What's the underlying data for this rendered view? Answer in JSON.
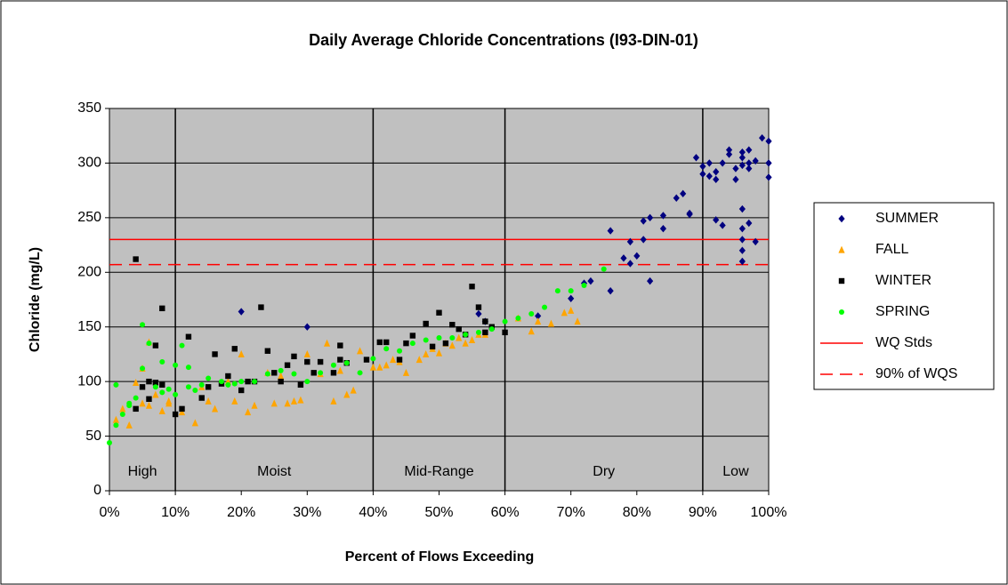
{
  "chart_data": {
    "type": "scatter",
    "title": "Daily Average Chloride Concentrations (I93-DIN-01)",
    "x_label": "Percent of Flows Exceeding",
    "y_label": "Chloride (mg/L)",
    "xlim": [
      0,
      100
    ],
    "ylim": [
      0,
      350
    ],
    "xticks": [
      {
        "value": 0,
        "label": "0%"
      },
      {
        "value": 10,
        "label": "10%"
      },
      {
        "value": 20,
        "label": "20%"
      },
      {
        "value": 30,
        "label": "30%"
      },
      {
        "value": 40,
        "label": "40%"
      },
      {
        "value": 50,
        "label": "50%"
      },
      {
        "value": 60,
        "label": "60%"
      },
      {
        "value": 70,
        "label": "70%"
      },
      {
        "value": 80,
        "label": "80%"
      },
      {
        "value": 90,
        "label": "90%"
      },
      {
        "value": 100,
        "label": "100%"
      }
    ],
    "yticks": [
      0,
      50,
      100,
      150,
      200,
      250,
      300,
      350
    ],
    "grid": true,
    "zone_bounds": [
      10,
      40,
      60,
      90
    ],
    "zones": [
      "High",
      "Moist",
      "Mid-Range",
      "Dry",
      "Low"
    ],
    "ref_lines": [
      {
        "name": "WQ Stds",
        "value": 230,
        "color": "#ff0000",
        "dashed": false
      },
      {
        "name": "90% of WQS",
        "value": 207,
        "color": "#ff0000",
        "dashed": true
      }
    ],
    "legend": "right",
    "series": [
      {
        "name": "SUMMER",
        "color": "#000080",
        "marker": "diamond",
        "x": [
          20,
          30,
          56,
          57,
          65,
          70,
          72,
          73,
          76,
          76,
          78,
          79,
          79,
          80,
          81,
          81,
          82,
          82,
          84,
          84,
          86,
          87,
          88,
          88,
          89,
          90,
          90,
          91,
          91,
          92,
          92,
          93,
          93,
          94,
          95,
          95,
          96,
          96,
          96,
          96,
          96,
          96,
          96,
          97,
          97,
          97,
          98,
          98,
          99,
          100,
          100,
          100,
          92,
          94,
          96,
          97
        ],
        "y": [
          164,
          150,
          162,
          155,
          160,
          176,
          190,
          192,
          238,
          183,
          213,
          228,
          208,
          215,
          230,
          247,
          250,
          192,
          252,
          240,
          268,
          272,
          254,
          253,
          305,
          290,
          297,
          300,
          288,
          285,
          248,
          300,
          243,
          312,
          295,
          285,
          310,
          305,
          298,
          258,
          240,
          230,
          210,
          312,
          300,
          295,
          302,
          228,
          323,
          300,
          287,
          320,
          292,
          308,
          220,
          245
        ]
      },
      {
        "name": "FALL",
        "color": "#ffa500",
        "marker": "triangle",
        "x": [
          1,
          2,
          3,
          4,
          5,
          6,
          7,
          8,
          9,
          11,
          13,
          14,
          15,
          16,
          18,
          19,
          20,
          21,
          22,
          24,
          25,
          26,
          27,
          28,
          29,
          30,
          32,
          33,
          34,
          35,
          36,
          37,
          38,
          40,
          41,
          42,
          43,
          44,
          45,
          47,
          48,
          49,
          50,
          51,
          52,
          53,
          54,
          55,
          56,
          57,
          62,
          64,
          65,
          67,
          69,
          70,
          71,
          5,
          6,
          9
        ],
        "y": [
          65,
          75,
          60,
          99,
          112,
          78,
          88,
          73,
          82,
          72,
          62,
          95,
          82,
          75,
          100,
          82,
          125,
          72,
          78,
          108,
          80,
          105,
          80,
          82,
          83,
          125,
          107,
          135,
          82,
          110,
          88,
          92,
          128,
          113,
          113,
          115,
          120,
          118,
          108,
          120,
          125,
          130,
          126,
          135,
          133,
          140,
          135,
          138,
          143,
          143,
          158,
          146,
          155,
          153,
          163,
          165,
          155,
          80,
          136,
          80
        ]
      },
      {
        "name": "WINTER",
        "color": "#000000",
        "marker": "square",
        "x": [
          4,
          5,
          6,
          7,
          8,
          8,
          10,
          11,
          12,
          14,
          15,
          16,
          17,
          18,
          19,
          20,
          21,
          22,
          23,
          24,
          25,
          26,
          27,
          28,
          29,
          30,
          31,
          32,
          34,
          35,
          35,
          36,
          39,
          41,
          42,
          44,
          45,
          46,
          48,
          49,
          50,
          51,
          52,
          53,
          54,
          55,
          56,
          57,
          57,
          58,
          60,
          4,
          6,
          7
        ],
        "y": [
          212,
          95,
          100,
          133,
          167,
          97,
          70,
          75,
          141,
          85,
          95,
          125,
          98,
          105,
          130,
          92,
          100,
          100,
          168,
          128,
          108,
          100,
          115,
          123,
          97,
          118,
          108,
          118,
          108,
          133,
          120,
          117,
          120,
          136,
          136,
          120,
          135,
          142,
          153,
          132,
          163,
          135,
          152,
          148,
          143,
          187,
          168,
          155,
          145,
          150,
          145,
          75,
          84,
          99
        ]
      },
      {
        "name": "SPRING",
        "color": "#00ff00",
        "marker": "circle",
        "x": [
          0,
          1,
          2,
          3,
          4,
          5,
          5,
          6,
          7,
          8,
          9,
          10,
          11,
          12,
          13,
          14,
          15,
          17,
          18,
          19,
          20,
          22,
          24,
          26,
          28,
          30,
          32,
          34,
          36,
          38,
          40,
          42,
          44,
          46,
          48,
          50,
          52,
          54,
          56,
          58,
          60,
          62,
          64,
          66,
          68,
          70,
          72,
          75,
          1,
          3,
          8,
          10,
          12
        ],
        "y": [
          44,
          97,
          70,
          78,
          85,
          152,
          112,
          135,
          95,
          118,
          93,
          115,
          133,
          113,
          92,
          97,
          103,
          100,
          97,
          98,
          100,
          100,
          107,
          110,
          107,
          100,
          108,
          115,
          117,
          108,
          121,
          130,
          128,
          135,
          138,
          140,
          140,
          143,
          145,
          148,
          155,
          158,
          162,
          168,
          183,
          183,
          188,
          203,
          60,
          80,
          90,
          88,
          95
        ]
      }
    ]
  }
}
